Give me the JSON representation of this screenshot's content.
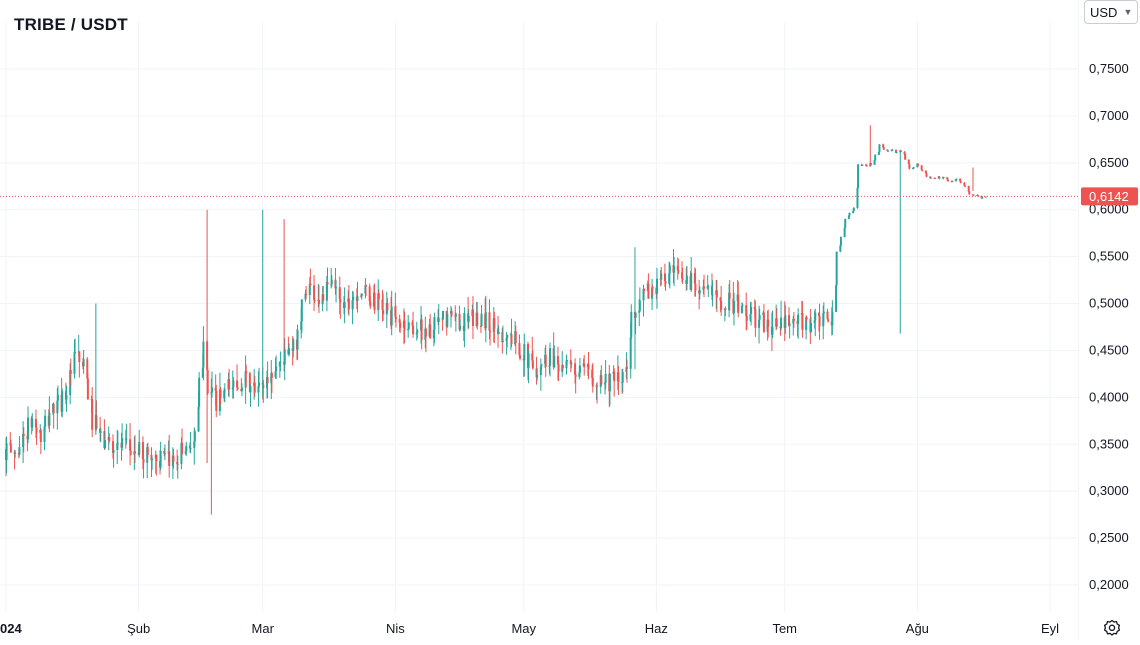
{
  "header": {
    "pair_title": "TRIBE / USDT"
  },
  "currency": {
    "selected": "USD"
  },
  "icons": {
    "currency_chevron": "chevron-down-icon",
    "settings": "gear-icon"
  },
  "colors": {
    "up": "#26a69a",
    "down": "#ef5350",
    "price_label_bg": "#ef5350",
    "grid": "#f0f3fa",
    "axis_text": "#131722"
  },
  "chart_data": {
    "type": "candlestick",
    "title": "TRIBE / USDT",
    "xlabel": "",
    "ylabel": "",
    "ylim": [
      0.18,
      0.78
    ],
    "y_ticks": [
      "0,2000",
      "0,2500",
      "0,3000",
      "0,3500",
      "0,4000",
      "0,4500",
      "0,5000",
      "0,5500",
      "0,6000",
      "0,6500",
      "0,7000",
      "0,7500"
    ],
    "y_tick_values": [
      0.2,
      0.25,
      0.3,
      0.35,
      0.4,
      0.45,
      0.5,
      0.55,
      0.6,
      0.65,
      0.7,
      0.75
    ],
    "x_ticks": [
      "024",
      "Şub",
      "Mar",
      "Nis",
      "May",
      "Haz",
      "Tem",
      "Ağu",
      "Eyl"
    ],
    "x_tick_dates": [
      "2024-01-01",
      "2024-02-01",
      "2024-03-01",
      "2024-04-01",
      "2024-05-01",
      "2024-06-01",
      "2024-07-01",
      "2024-08-01",
      "2024-09-01"
    ],
    "x_range": [
      "2023-12-31",
      "2024-09-09"
    ],
    "current_price": 0.6142,
    "current_price_label": "0,6142",
    "grid": true,
    "series": [
      {
        "points": [
          [
            "2024-01-01",
            0.345
          ],
          [
            "2024-01-04",
            0.34
          ],
          [
            "2024-01-06",
            0.36
          ],
          [
            "2024-01-08",
            0.375
          ],
          [
            "2024-01-10",
            0.355
          ],
          [
            "2024-01-12",
            0.385
          ],
          [
            "2024-01-14",
            0.392
          ],
          [
            "2024-01-16",
            0.41
          ],
          [
            "2024-01-18",
            0.445
          ],
          [
            "2024-01-20",
            0.43
          ],
          [
            "2024-01-22",
            0.375
          ],
          [
            "2024-01-24",
            0.355
          ],
          [
            "2024-01-27",
            0.35
          ],
          [
            "2024-01-30",
            0.345
          ],
          [
            "2024-02-03",
            0.34
          ],
          [
            "2024-02-06",
            0.335
          ],
          [
            "2024-02-09",
            0.33
          ],
          [
            "2024-02-12",
            0.345
          ],
          [
            "2024-02-15",
            0.355
          ],
          [
            "2024-02-17",
            0.47
          ],
          [
            "2024-02-18",
            0.405
          ],
          [
            "2024-02-20",
            0.395
          ],
          [
            "2024-02-23",
            0.41
          ],
          [
            "2024-02-26",
            0.42
          ],
          [
            "2024-02-29",
            0.405
          ],
          [
            "2024-03-03",
            0.42
          ],
          [
            "2024-03-06",
            0.44
          ],
          [
            "2024-03-09",
            0.45
          ],
          [
            "2024-03-12",
            0.52
          ],
          [
            "2024-03-15",
            0.505
          ],
          [
            "2024-03-18",
            0.52
          ],
          [
            "2024-03-21",
            0.5
          ],
          [
            "2024-03-24",
            0.515
          ],
          [
            "2024-03-27",
            0.505
          ],
          [
            "2024-03-30",
            0.495
          ],
          [
            "2024-04-02",
            0.48
          ],
          [
            "2024-04-06",
            0.475
          ],
          [
            "2024-04-10",
            0.47
          ],
          [
            "2024-04-14",
            0.485
          ],
          [
            "2024-04-18",
            0.48
          ],
          [
            "2024-04-22",
            0.485
          ],
          [
            "2024-04-26",
            0.47
          ],
          [
            "2024-04-30",
            0.46
          ],
          [
            "2024-05-04",
            0.43
          ],
          [
            "2024-05-08",
            0.445
          ],
          [
            "2024-05-12",
            0.43
          ],
          [
            "2024-05-16",
            0.425
          ],
          [
            "2024-05-20",
            0.42
          ],
          [
            "2024-05-24",
            0.415
          ],
          [
            "2024-05-26",
            0.43
          ],
          [
            "2024-05-27",
            0.49
          ],
          [
            "2024-05-30",
            0.51
          ],
          [
            "2024-06-02",
            0.52
          ],
          [
            "2024-06-05",
            0.53
          ],
          [
            "2024-06-08",
            0.525
          ],
          [
            "2024-06-11",
            0.525
          ],
          [
            "2024-06-14",
            0.51
          ],
          [
            "2024-06-17",
            0.505
          ],
          [
            "2024-06-20",
            0.5
          ],
          [
            "2024-06-23",
            0.49
          ],
          [
            "2024-06-26",
            0.48
          ],
          [
            "2024-06-29",
            0.475
          ],
          [
            "2024-07-03",
            0.478
          ],
          [
            "2024-07-07",
            0.48
          ],
          [
            "2024-07-10",
            0.48
          ],
          [
            "2024-07-13",
            0.482
          ],
          [
            "2024-07-14",
            0.555
          ],
          [
            "2024-07-16",
            0.59
          ],
          [
            "2024-07-18",
            0.6
          ],
          [
            "2024-07-19",
            0.648
          ],
          [
            "2024-07-22",
            0.648
          ],
          [
            "2024-07-24",
            0.668
          ],
          [
            "2024-07-26",
            0.662
          ],
          [
            "2024-07-29",
            0.662
          ],
          [
            "2024-07-31",
            0.645
          ],
          [
            "2024-08-02",
            0.648
          ],
          [
            "2024-08-04",
            0.634
          ],
          [
            "2024-08-06",
            0.634
          ],
          [
            "2024-08-09",
            0.632
          ],
          [
            "2024-08-11",
            0.632
          ],
          [
            "2024-08-13",
            0.625
          ],
          [
            "2024-08-14",
            0.615
          ],
          [
            "2024-08-17",
            0.614
          ]
        ]
      }
    ]
  }
}
